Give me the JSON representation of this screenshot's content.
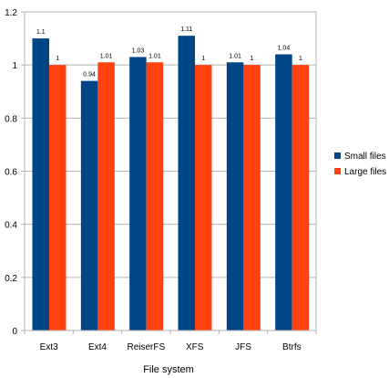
{
  "chart_data": {
    "type": "bar",
    "title": "",
    "xlabel": "File system",
    "ylabel": "",
    "ylim": [
      0,
      1.2
    ],
    "yticks": [
      0,
      0.2,
      0.4,
      0.6,
      0.8,
      1,
      1.2
    ],
    "grid": true,
    "legend_position": "right",
    "categories": [
      "Ext3",
      "Ext4",
      "ReiserFS",
      "XFS",
      "JFS",
      "Btrfs"
    ],
    "series": [
      {
        "name": "Small files",
        "color": "#004586",
        "values": [
          1.1,
          0.94,
          1.03,
          1.11,
          1.01,
          1.04
        ],
        "labels": [
          "1.1",
          "0.94",
          "1.03",
          "1.11",
          "1.01",
          "1.04"
        ]
      },
      {
        "name": "Large files",
        "color": "#ff420e",
        "values": [
          1,
          1.01,
          1.01,
          1,
          1,
          1
        ],
        "labels": [
          "1",
          "1.01",
          "1.01",
          "1",
          "1",
          "1"
        ]
      }
    ]
  }
}
